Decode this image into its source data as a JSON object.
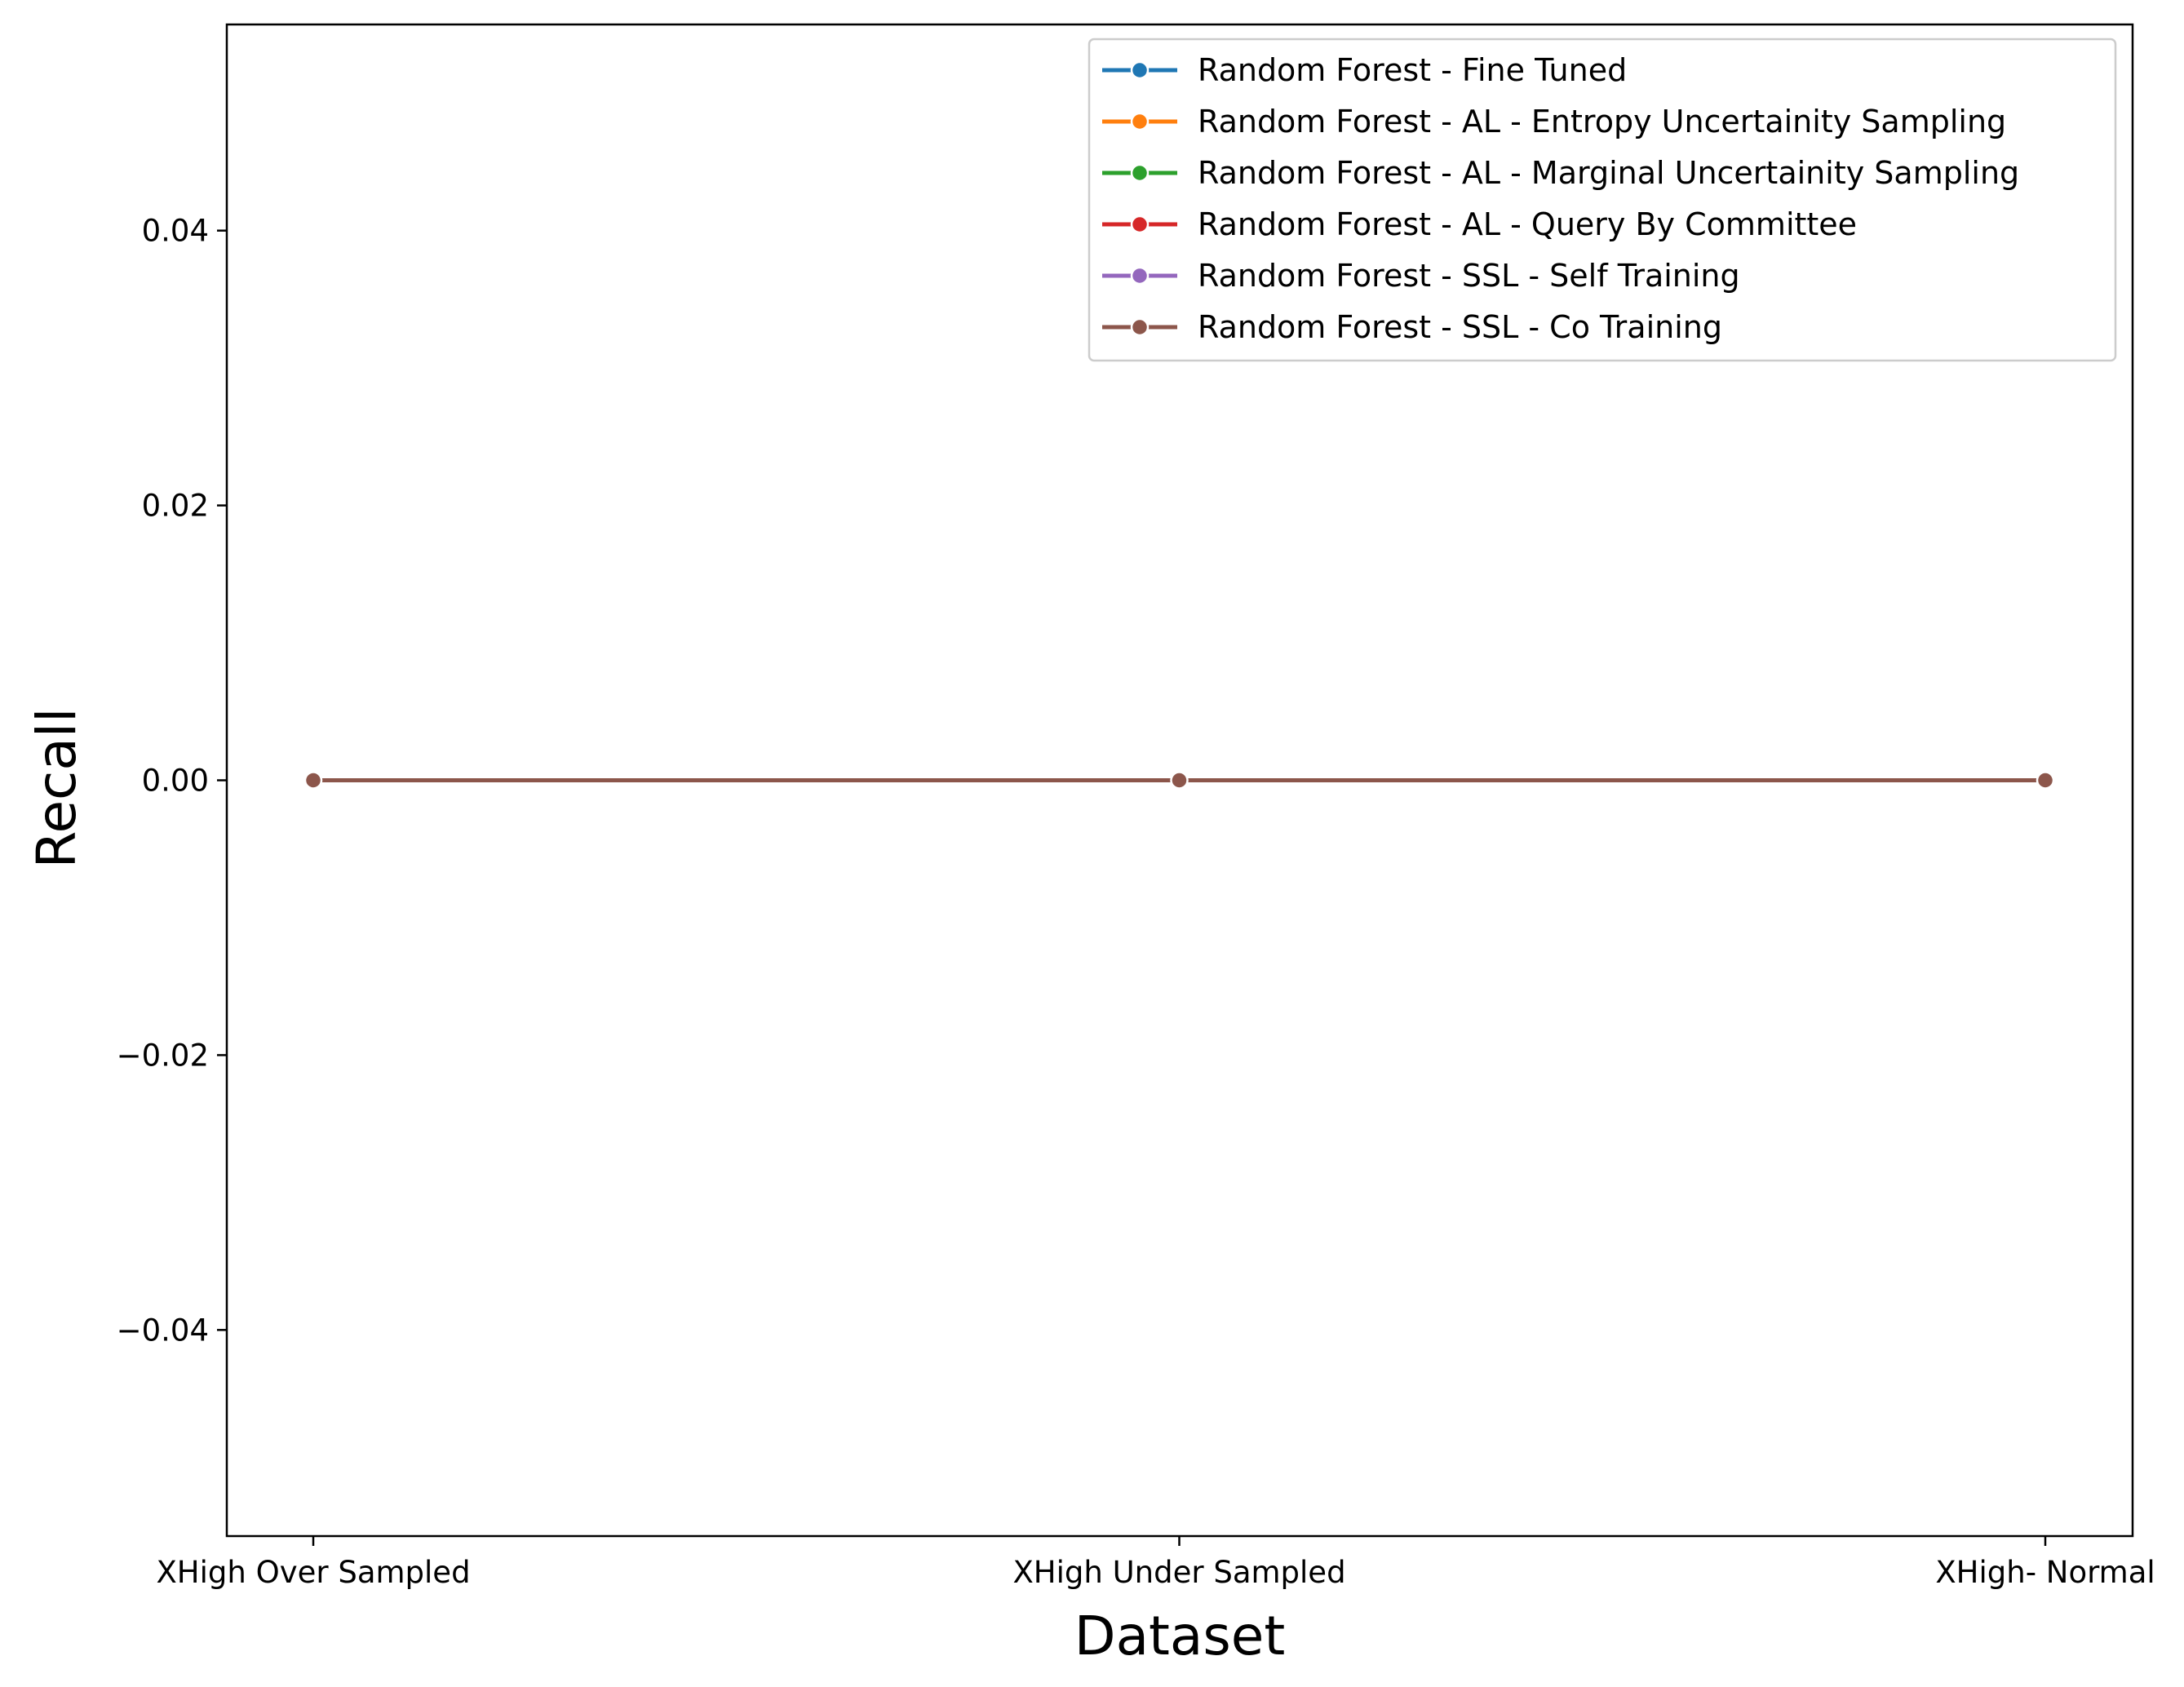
{
  "chart_data": {
    "type": "line",
    "title": "",
    "xlabel": "Dataset",
    "ylabel": "Recall",
    "categories": [
      "XHigh Over Sampled",
      "XHigh Under Sampled",
      "XHigh- Normal"
    ],
    "ylim": [
      -0.055,
      0.055
    ],
    "yticks": [
      -0.04,
      -0.02,
      0.0,
      0.02,
      0.04
    ],
    "ytick_labels": [
      "−0.04",
      "−0.02",
      "0.00",
      "0.02",
      "0.04"
    ],
    "grid": false,
    "legend_position": "top-right",
    "series": [
      {
        "name": "Random Forest - Fine Tuned",
        "color": "#1f77b4",
        "values": [
          0,
          0,
          0
        ]
      },
      {
        "name": "Random Forest - AL - Entropy Uncertainity Sampling",
        "color": "#ff7f0e",
        "values": [
          0,
          0,
          0
        ]
      },
      {
        "name": "Random Forest - AL - Marginal Uncertainity Sampling",
        "color": "#2ca02c",
        "values": [
          0,
          0,
          0
        ]
      },
      {
        "name": "Random Forest - AL - Query By Committee",
        "color": "#d62728",
        "values": [
          0,
          0,
          0
        ]
      },
      {
        "name": "Random Forest - SSL - Self Training",
        "color": "#9467bd",
        "values": [
          0,
          0,
          0
        ]
      },
      {
        "name": "Random Forest - SSL - Co Training",
        "color": "#8c564b",
        "values": [
          0,
          0,
          0
        ]
      }
    ]
  }
}
